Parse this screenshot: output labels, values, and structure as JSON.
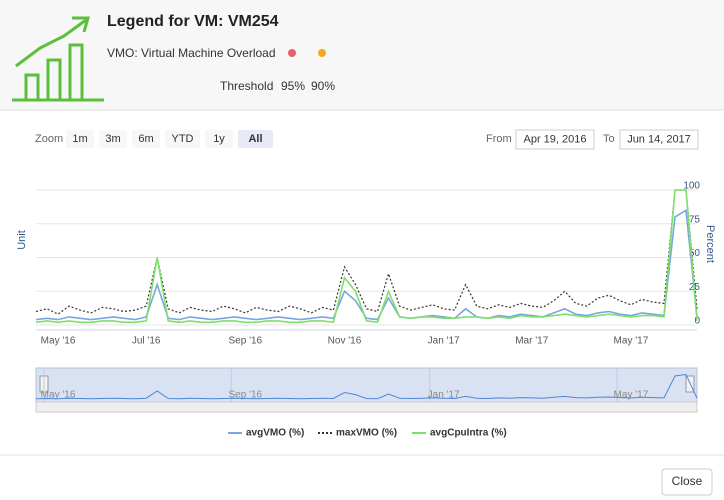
{
  "header": {
    "title": "Legend for VM: VM254",
    "subtitle": "VMO: Virtual Machine Overload",
    "threshold_label": "Threshold",
    "thresholds": [
      {
        "label": "95%",
        "color": "#e8606b"
      },
      {
        "label": "90%",
        "color": "#f5a623"
      }
    ]
  },
  "toolbar": {
    "zoom_label": "Zoom",
    "buttons": [
      "1m",
      "3m",
      "6m",
      "YTD",
      "1y",
      "All"
    ],
    "selected": "All",
    "from_label": "From",
    "from": "Apr 19, 2016",
    "to_label": "To",
    "to": "Jun 14, 2017"
  },
  "chart_data": {
    "type": "line",
    "y_label": "Unit",
    "y2_label": "Percent",
    "categories": [
      null,
      null,
      "May '16",
      null,
      null,
      null,
      null,
      null,
      null,
      null,
      "Jul '16",
      null,
      null,
      null,
      null,
      null,
      null,
      null,
      null,
      "Sep '16",
      null,
      null,
      null,
      null,
      null,
      null,
      null,
      null,
      "Nov '16",
      null,
      null,
      null,
      null,
      null,
      null,
      null,
      null,
      "Jan '17",
      null,
      null,
      null,
      null,
      null,
      null,
      null,
      "Mar '17",
      null,
      null,
      null,
      null,
      null,
      null,
      null,
      null,
      "May '17",
      null,
      null,
      null,
      null,
      null,
      null
    ],
    "y2lim": [
      0,
      100
    ],
    "y2ticks": [
      0,
      25,
      50,
      75,
      100
    ],
    "grid": true,
    "series": [
      {
        "name": "avgVMO (%)",
        "color": "#7aa6e0",
        "axis": "y2",
        "line_style": "solid",
        "values": [
          4,
          5,
          4,
          6,
          5,
          4,
          5,
          6,
          5,
          4,
          6,
          30,
          5,
          4,
          6,
          5,
          4,
          5,
          6,
          5,
          4,
          5,
          6,
          5,
          4,
          5,
          6,
          5,
          25,
          18,
          5,
          4,
          20,
          6,
          5,
          6,
          7,
          6,
          5,
          12,
          6,
          5,
          7,
          6,
          8,
          7,
          6,
          9,
          12,
          8,
          7,
          9,
          10,
          8,
          7,
          9,
          8,
          7,
          80,
          85,
          6
        ]
      },
      {
        "name": "maxVMO (%)",
        "color": "#333333",
        "axis": "y2",
        "line_style": "dotted",
        "values": [
          10,
          12,
          8,
          14,
          11,
          9,
          13,
          12,
          10,
          11,
          14,
          50,
          12,
          9,
          13,
          11,
          10,
          14,
          12,
          9,
          13,
          11,
          10,
          14,
          12,
          9,
          13,
          11,
          43,
          30,
          12,
          10,
          38,
          14,
          11,
          13,
          15,
          12,
          11,
          30,
          14,
          12,
          15,
          13,
          16,
          14,
          13,
          18,
          25,
          16,
          14,
          20,
          22,
          18,
          15,
          19,
          17,
          16,
          100,
          100,
          12
        ]
      },
      {
        "name": "avgCpuIntra (%)",
        "color": "#7ee06a",
        "axis": "y2",
        "line_style": "solid",
        "values": [
          2,
          3,
          2,
          3,
          2,
          2,
          3,
          3,
          2,
          2,
          3,
          50,
          3,
          2,
          3,
          2,
          2,
          3,
          3,
          2,
          2,
          3,
          3,
          2,
          2,
          3,
          3,
          2,
          35,
          25,
          3,
          2,
          25,
          6,
          5,
          6,
          6,
          5,
          5,
          6,
          6,
          5,
          6,
          5,
          7,
          6,
          6,
          7,
          8,
          7,
          6,
          7,
          8,
          7,
          6,
          7,
          7,
          6,
          100,
          100,
          3
        ]
      }
    ]
  },
  "footer": {
    "close": "Close"
  }
}
